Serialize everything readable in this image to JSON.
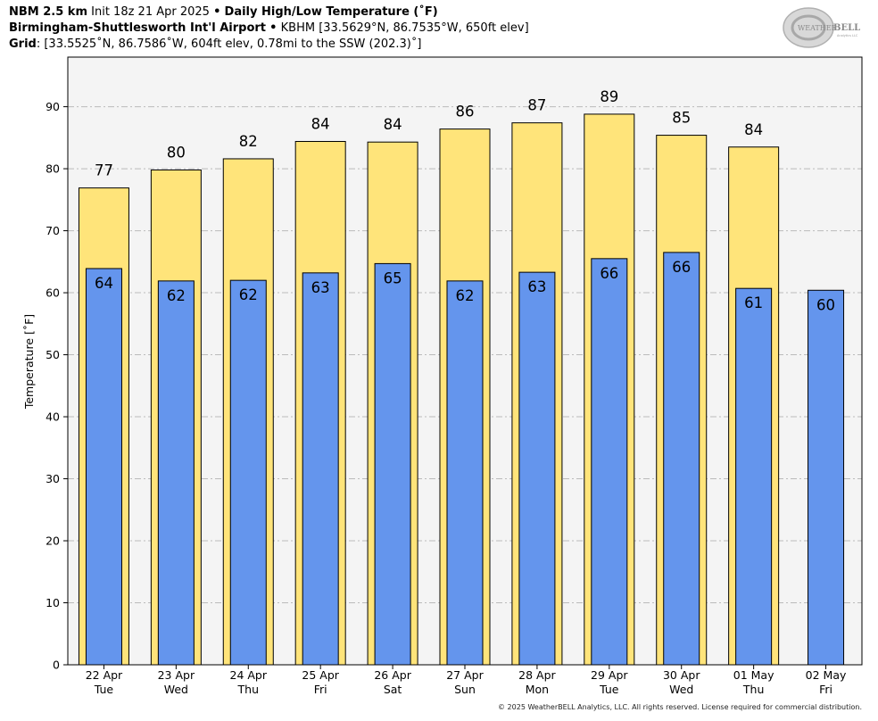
{
  "header": {
    "line1": {
      "model": "NBM 2.5 km",
      "init": "Init 18z 21 Apr 2025",
      "sep": "•",
      "product": "Daily High/Low Temperature (˚F)"
    },
    "line2": {
      "station": "Birmingham-Shuttlesworth Int'l Airport",
      "sep": "•",
      "details": "KBHM [33.5629°N, 86.7535°W, 650ft elev]"
    },
    "line3": {
      "label": "Grid",
      "details": ": [33.5525˚N, 86.7586˚W, 604ft elev, 0.78mi to the SSW (202.3)˚]"
    }
  },
  "logo": {
    "text_weather": "WEATHER",
    "text_bell": "BELL",
    "subtext": "Analytics LLC"
  },
  "copyright": "© 2025 WeatherBELL Analytics, LLC. All rights reserved. License required for commercial distribution.",
  "colors": {
    "high": "#ffe47a",
    "low": "#6495ed",
    "plot_bg": "#f4f4f4",
    "grid": "#bbbbbb"
  },
  "chart_data": {
    "type": "bar",
    "title": "Daily High/Low Temperature (˚F)",
    "ylabel": "Temperature [˚F]",
    "ylim": [
      0,
      98
    ],
    "yticks": [
      0,
      10,
      20,
      30,
      40,
      50,
      60,
      70,
      80,
      90
    ],
    "grid": true,
    "categories": [
      "22 Apr",
      "23 Apr",
      "24 Apr",
      "25 Apr",
      "26 Apr",
      "27 Apr",
      "28 Apr",
      "29 Apr",
      "30 Apr",
      "01 May",
      "02 May"
    ],
    "weekdays": [
      "Tue",
      "Wed",
      "Thu",
      "Fri",
      "Sat",
      "Sun",
      "Mon",
      "Tue",
      "Wed",
      "Thu",
      "Fri"
    ],
    "series": [
      {
        "name": "High",
        "values": [
          77,
          80,
          82,
          84,
          84,
          86,
          87,
          89,
          85,
          84,
          null
        ],
        "plotted": [
          76.9,
          79.8,
          81.6,
          84.4,
          84.3,
          86.4,
          87.4,
          88.8,
          85.4,
          83.5,
          null
        ]
      },
      {
        "name": "Low",
        "values": [
          64,
          62,
          62,
          63,
          65,
          62,
          63,
          66,
          66,
          61,
          60
        ],
        "plotted": [
          63.9,
          61.9,
          62.0,
          63.2,
          64.7,
          61.9,
          63.3,
          65.5,
          66.5,
          60.7,
          60.4
        ]
      }
    ]
  }
}
